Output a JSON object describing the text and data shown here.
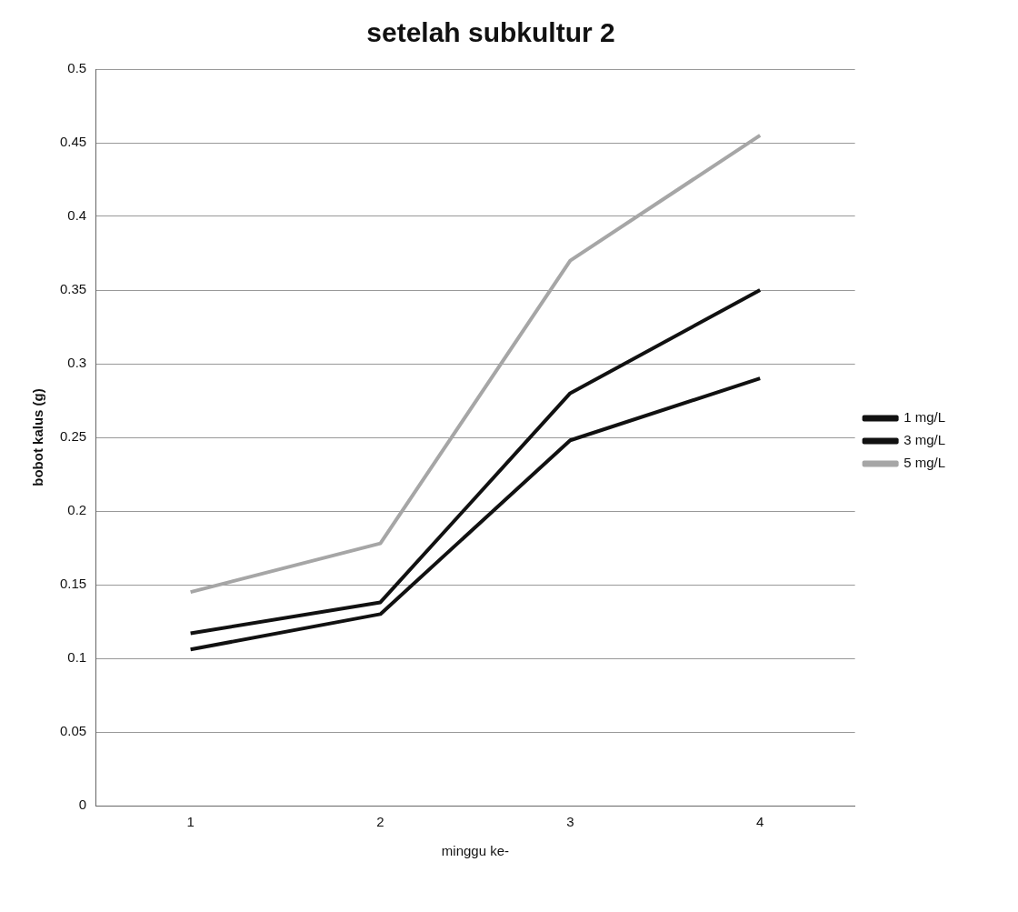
{
  "chart_data": {
    "type": "line",
    "title": "setelah subkultur 2",
    "xlabel": "minggu ke-",
    "ylabel": "bobot kalus (g)",
    "categories": [
      "1",
      "2",
      "3",
      "4"
    ],
    "series": [
      {
        "name": "1 mg/L",
        "color": "#111111",
        "values": [
          0.117,
          0.138,
          0.28,
          0.35
        ]
      },
      {
        "name": "3 mg/L",
        "color": "#111111",
        "values": [
          0.106,
          0.13,
          0.248,
          0.29
        ]
      },
      {
        "name": "5 mg/L",
        "color": "#a6a6a6",
        "values": [
          0.145,
          0.178,
          0.37,
          0.455
        ]
      }
    ],
    "ylim": [
      0,
      0.5
    ],
    "yticks": [
      0,
      0.05,
      0.1,
      0.15,
      0.2,
      0.25,
      0.3,
      0.35,
      0.4,
      0.45,
      0.5
    ],
    "grid": "y",
    "legend": "right",
    "marker": "none",
    "line_style": "solid"
  }
}
